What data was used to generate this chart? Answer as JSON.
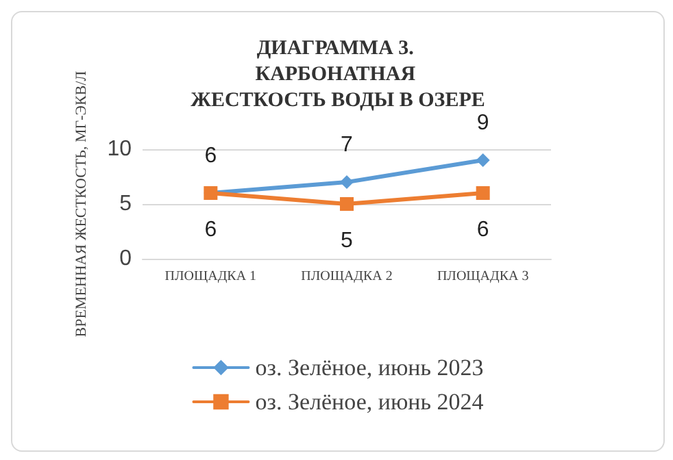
{
  "chart_data": {
    "type": "line",
    "title": "ДИАГРАММА 3. КАРБОНАТНАЯ ЖЕСТКОСТЬ ВОДЫ В ОЗЕРЕ",
    "ylabel": "ВРЕМЕННАЯ ЖЕСТКОСТЬ, МГ-ЭКВ/Л",
    "categories": [
      "ПЛОЩАДКА 1",
      "ПЛОЩАДКА 2",
      "ПЛОЩАДКА 3"
    ],
    "series": [
      {
        "name": "оз. Зелёное, июнь 2023",
        "color": "#5b9bd5",
        "values": [
          6,
          7,
          9
        ],
        "marker": "diamond"
      },
      {
        "name": "оз. Зелёное, июнь 2024",
        "color": "#ed7d31",
        "values": [
          6,
          5,
          6
        ],
        "marker": "square"
      }
    ],
    "ylim": [
      0,
      10
    ],
    "yticks": [
      0,
      5,
      10
    ],
    "grid": "y",
    "legend": "bottom",
    "data_labels": true
  }
}
